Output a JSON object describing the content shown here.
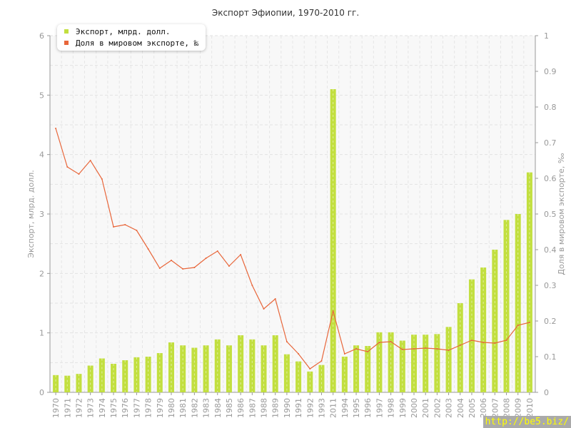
{
  "chart_data": {
    "type": "bar+line",
    "title": "Экспорт Эфиопии, 1970-2010 гг.",
    "ylabel": "Экспорт, млрд. долл.",
    "y2label": "Доля в мировом экспорте, ‰",
    "ylim": [
      0,
      6
    ],
    "y2lim": [
      0,
      1
    ],
    "yticks": [
      "0",
      "1",
      "2",
      "3",
      "4",
      "5",
      "6"
    ],
    "y2ticks": [
      "0",
      "0.1",
      "0.2",
      "0.3",
      "0.4",
      "0.5",
      "0.6",
      "0.7",
      "0.8",
      "0.9",
      "1"
    ],
    "grid": true,
    "legend_position": "top-left",
    "categories": [
      "1970",
      "1971",
      "1972",
      "1973",
      "1974",
      "1975",
      "1976",
      "1977",
      "1978",
      "1979",
      "1980",
      "1981",
      "1982",
      "1983",
      "1984",
      "1985",
      "1986",
      "1987",
      "1988",
      "1989",
      "1990",
      "1991",
      "1992",
      "1993",
      "2011",
      "1994",
      "1995",
      "1996",
      "1997",
      "1998",
      "1999",
      "2000",
      "2001",
      "2002",
      "2003",
      "2004",
      "2005",
      "2006",
      "2007",
      "2008",
      "2009",
      "2010"
    ],
    "series": [
      {
        "name": "Экспорт, млрд. долл.",
        "type": "bar",
        "axis": "left",
        "color": "#c2df3f",
        "values": [
          0.29,
          0.28,
          0.31,
          0.45,
          0.57,
          0.48,
          0.54,
          0.59,
          0.6,
          0.66,
          0.84,
          0.79,
          0.75,
          0.79,
          0.89,
          0.79,
          0.96,
          0.89,
          0.79,
          0.96,
          0.64,
          0.52,
          0.35,
          0.46,
          5.1,
          0.6,
          0.79,
          0.78,
          1.01,
          1.01,
          0.87,
          0.97,
          0.97,
          0.98,
          1.1,
          1.5,
          1.9,
          2.1,
          2.4,
          2.9,
          3.0,
          3.7
        ]
      },
      {
        "name": "Доля в мировом экспорте, ‰",
        "type": "line",
        "axis": "right",
        "color": "#e8663a",
        "values": [
          0.74,
          0.632,
          0.612,
          0.65,
          0.598,
          0.464,
          0.47,
          0.454,
          0.402,
          0.348,
          0.37,
          0.346,
          0.35,
          0.376,
          0.396,
          0.354,
          0.386,
          0.3,
          0.234,
          0.262,
          0.142,
          0.108,
          0.066,
          0.088,
          0.228,
          0.108,
          0.122,
          0.114,
          0.14,
          0.142,
          0.12,
          0.122,
          0.124,
          0.122,
          0.118,
          0.132,
          0.146,
          0.14,
          0.138,
          0.146,
          0.188,
          0.196
        ]
      }
    ]
  },
  "watermark": "http://be5.biz/"
}
